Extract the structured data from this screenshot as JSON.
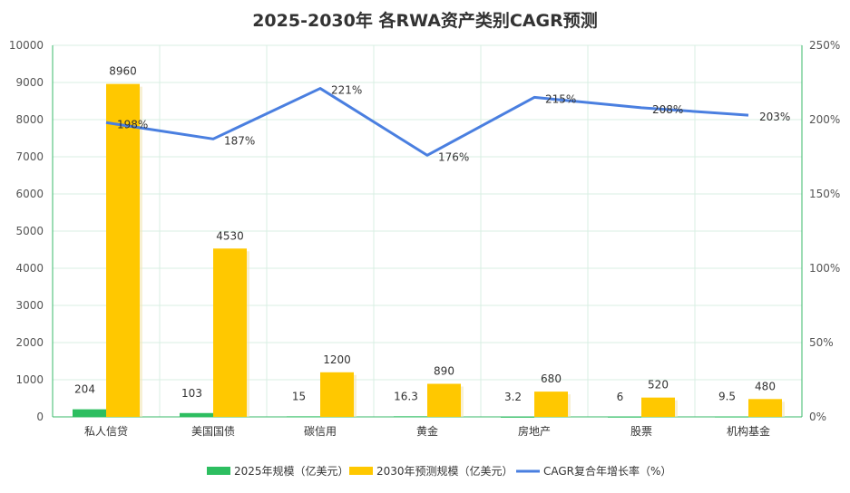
{
  "chart_data": {
    "type": "bar",
    "title": "2025-2030年 各RWA资产类别CAGR预测",
    "categories": [
      "私人信贷",
      "美国国债",
      "碳信用",
      "黄金",
      "房地产",
      "股票",
      "机构基金"
    ],
    "series": [
      {
        "name": "2025年规模（亿美元）",
        "type": "bar",
        "axis": "left",
        "color": "#2dbe60",
        "values": [
          204,
          103,
          15,
          16.3,
          3.2,
          6,
          9.5
        ],
        "labels": [
          "204",
          "103",
          "15",
          "16.3",
          "3.2",
          "6",
          "9.5"
        ]
      },
      {
        "name": "2030年预测规模（亿美元）",
        "type": "bar",
        "axis": "left",
        "color": "#ffc800",
        "values": [
          8960,
          4530,
          1200,
          890,
          680,
          520,
          480
        ],
        "labels": [
          "8960",
          "4530",
          "1200",
          "890",
          "680",
          "520",
          "480"
        ]
      },
      {
        "name": "CAGR复合年增长率（%）",
        "type": "line",
        "axis": "right",
        "color": "#4a7fe0",
        "values": [
          198,
          187,
          221,
          176,
          215,
          208,
          203
        ],
        "labels": [
          "198%",
          "187%",
          "221%",
          "176%",
          "215%",
          "208%",
          "203%"
        ]
      }
    ],
    "y_left": {
      "range": [
        0,
        10000
      ],
      "ticks": [
        "0",
        "1000",
        "2000",
        "3000",
        "4000",
        "5000",
        "6000",
        "7000",
        "8000",
        "9000",
        "10000"
      ]
    },
    "y_right": {
      "range": [
        0,
        250
      ],
      "ticks": [
        "0%",
        "50%",
        "100%",
        "150%",
        "200%",
        "250%"
      ]
    },
    "grid": true,
    "legend_position": "bottom"
  }
}
